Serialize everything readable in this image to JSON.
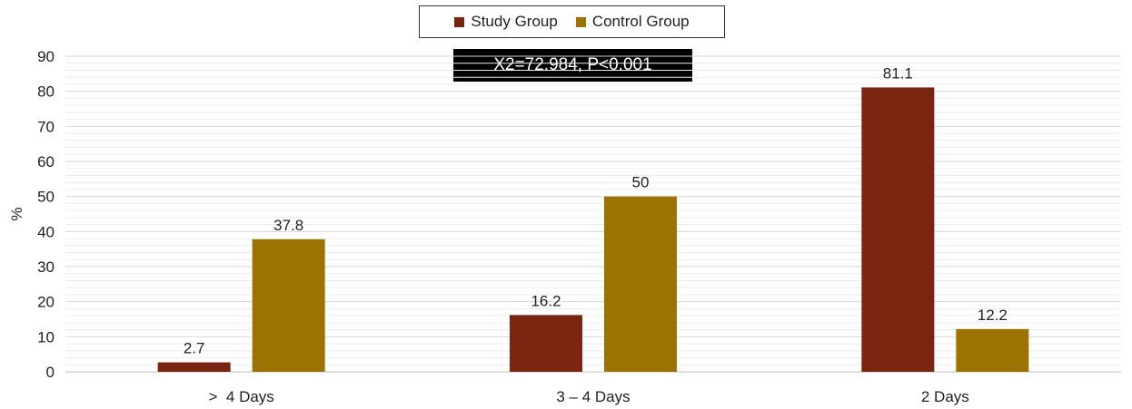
{
  "chart_data": {
    "type": "bar",
    "categories": [
      ">  4 Days",
      "3 – 4 Days",
      "2 Days"
    ],
    "series": [
      {
        "name": "Study Group",
        "color": "#7B2410",
        "values": [
          2.7,
          16.2,
          81.1
        ]
      },
      {
        "name": "Control Group",
        "color": "#9A7300",
        "values": [
          37.8,
          50,
          12.2
        ]
      }
    ],
    "data_labels": [
      [
        "2.7",
        "16.2",
        "81.1"
      ],
      [
        "37.8",
        "50",
        "12.2"
      ]
    ],
    "ylabel": "%",
    "xlabel": "",
    "ylim": [
      0,
      90
    ],
    "yticks": [
      0,
      10,
      20,
      30,
      40,
      50,
      60,
      70,
      80,
      90
    ],
    "grid": true,
    "legend_position": "top-center",
    "annotation": "X2=72.984, P<0.001"
  }
}
